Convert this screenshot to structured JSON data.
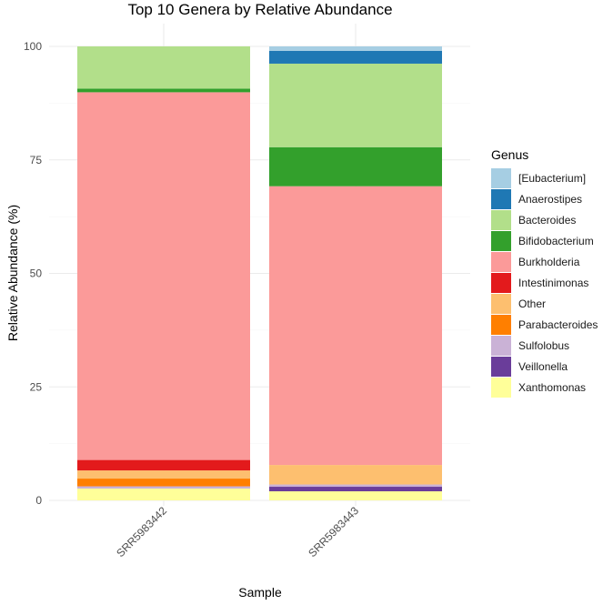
{
  "chart_data": {
    "type": "bar",
    "stacked": true,
    "title": "Top 10 Genera by Relative Abundance",
    "xlabel": "Sample",
    "ylabel": "Relative Abundance (%)",
    "ylim": [
      0,
      100
    ],
    "yticks": [
      0,
      25,
      50,
      75,
      100
    ],
    "grid": true,
    "legend": {
      "title": "Genus",
      "position": "right"
    },
    "categories": [
      "SRR5983442",
      "SRR5983443"
    ],
    "series": [
      {
        "name": "[Eubacterium]",
        "color": "#A6CEE3",
        "values": [
          0.0,
          1.0
        ]
      },
      {
        "name": "Anaerostipes",
        "color": "#1F78B4",
        "values": [
          0.0,
          2.8
        ]
      },
      {
        "name": "Bacteroides",
        "color": "#B2DF8A",
        "values": [
          9.3,
          18.4
        ]
      },
      {
        "name": "Bifidobacterium",
        "color": "#33A02C",
        "values": [
          0.8,
          8.6
        ]
      },
      {
        "name": "Burkholderia",
        "color": "#FB9A99",
        "values": [
          81.0,
          61.4
        ]
      },
      {
        "name": "Intestinimonas",
        "color": "#E31A1C",
        "values": [
          2.3,
          0.0
        ]
      },
      {
        "name": "Other",
        "color": "#FDBF6F",
        "values": [
          1.8,
          4.3
        ]
      },
      {
        "name": "Parabacteroides",
        "color": "#FF7F00",
        "values": [
          1.7,
          0.0
        ]
      },
      {
        "name": "Sulfolobus",
        "color": "#CAB2D6",
        "values": [
          0.5,
          0.5
        ]
      },
      {
        "name": "Veillonella",
        "color": "#6A3D9A",
        "values": [
          0.0,
          1.0
        ]
      },
      {
        "name": "Xanthomonas",
        "color": "#FFFF99",
        "values": [
          2.6,
          2.0
        ]
      }
    ],
    "legend_order": [
      "[Eubacterium]",
      "Anaerostipes",
      "Bacteroides",
      "Bifidobacterium",
      "Burkholderia",
      "Intestinimonas",
      "Other",
      "Parabacteroides",
      "Sulfolobus",
      "Veillonella",
      "Xanthomonas"
    ]
  }
}
